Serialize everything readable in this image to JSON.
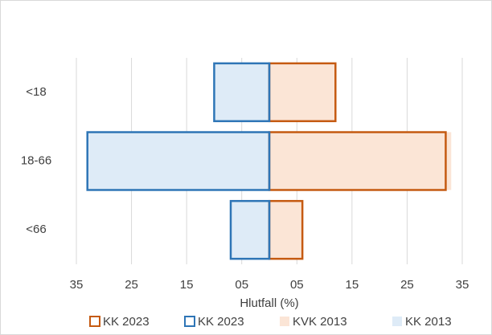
{
  "chart_data": {
    "type": "bar",
    "orientation": "horizontal",
    "x_label": "Hlutfall (%)",
    "categories": [
      "<18",
      "18-66",
      "<66"
    ],
    "series": [
      {
        "name": "KK 2023",
        "color": "#c55a11",
        "style": "outline",
        "values": [
          12,
          32,
          6
        ]
      },
      {
        "name": "KK 2023",
        "color": "#2e75b6",
        "style": "outline",
        "values": [
          -10,
          -33,
          -7
        ]
      },
      {
        "name": "KVK 2013",
        "color": "#fbe5d6",
        "style": "fill",
        "values": [
          12,
          33,
          6
        ]
      },
      {
        "name": "KK 2013",
        "color": "#deebf7",
        "style": "fill",
        "values": [
          -10,
          -33,
          -7
        ]
      }
    ],
    "xlim": [
      -35,
      35
    ],
    "xticks": [
      {
        "value": -35,
        "label": "35"
      },
      {
        "value": -25,
        "label": "25"
      },
      {
        "value": -15,
        "label": "15"
      },
      {
        "value": -5,
        "label": "05"
      },
      {
        "value": 5,
        "label": "05"
      },
      15,
      25,
      35
    ],
    "grid": true,
    "legend": "bottom"
  }
}
